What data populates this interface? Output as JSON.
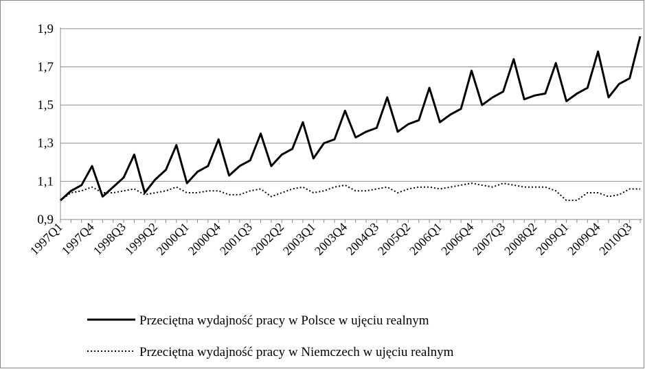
{
  "chart_data": {
    "type": "line",
    "categories": [
      "1997Q1",
      null,
      null,
      "1997Q4",
      null,
      null,
      "1998Q3",
      null,
      null,
      "1999Q2",
      null,
      null,
      "2000Q1",
      null,
      null,
      "2000Q4",
      null,
      null,
      "2001Q3",
      null,
      null,
      "2002Q2",
      null,
      null,
      "2003Q1",
      null,
      null,
      "2003Q4",
      null,
      null,
      "2004Q3",
      null,
      null,
      "2005Q2",
      null,
      null,
      "2006Q1",
      null,
      null,
      "2006Q4",
      null,
      null,
      "2007Q3",
      null,
      null,
      "2008Q2",
      null,
      null,
      "2009Q1",
      null,
      null,
      "2009Q4",
      null,
      null,
      "2010Q3",
      null
    ],
    "series": [
      {
        "name": "Przeciętna wydajność pracy w Polsce w ujęciu realnym",
        "color": "#000000",
        "style": "solid",
        "values": [
          1.0,
          1.05,
          1.08,
          1.18,
          1.02,
          1.07,
          1.12,
          1.24,
          1.04,
          1.11,
          1.16,
          1.29,
          1.09,
          1.15,
          1.18,
          1.32,
          1.13,
          1.18,
          1.21,
          1.35,
          1.18,
          1.24,
          1.27,
          1.41,
          1.22,
          1.3,
          1.32,
          1.47,
          1.33,
          1.36,
          1.38,
          1.54,
          1.36,
          1.4,
          1.42,
          1.59,
          1.41,
          1.45,
          1.48,
          1.68,
          1.5,
          1.54,
          1.57,
          1.74,
          1.53,
          1.55,
          1.56,
          1.72,
          1.52,
          1.56,
          1.59,
          1.78,
          1.54,
          1.61,
          1.64,
          1.86
        ]
      },
      {
        "name": "Przeciętna wydajność pracy w Niemczech w ujęciu realnym",
        "color": "#000000",
        "style": "dotted",
        "values": [
          1.0,
          1.04,
          1.05,
          1.07,
          1.04,
          1.04,
          1.05,
          1.06,
          1.03,
          1.04,
          1.05,
          1.07,
          1.04,
          1.04,
          1.05,
          1.05,
          1.03,
          1.03,
          1.05,
          1.06,
          1.02,
          1.04,
          1.06,
          1.07,
          1.04,
          1.05,
          1.07,
          1.08,
          1.05,
          1.05,
          1.06,
          1.07,
          1.04,
          1.06,
          1.07,
          1.07,
          1.06,
          1.07,
          1.08,
          1.09,
          1.08,
          1.07,
          1.09,
          1.08,
          1.07,
          1.07,
          1.07,
          1.05,
          1.0,
          1.0,
          1.04,
          1.04,
          1.02,
          1.03,
          1.06,
          1.06
        ]
      }
    ],
    "ylim": [
      0.9,
      2.0
    ],
    "yticks": [
      {
        "value": 0.9,
        "label": "0,9"
      },
      {
        "value": 1.1,
        "label": "1,1"
      },
      {
        "value": 1.3,
        "label": "1,3"
      },
      {
        "value": 1.5,
        "label": "1,5"
      },
      {
        "value": 1.7,
        "label": "1,7"
      },
      {
        "value": 1.9,
        "label": "1,9"
      }
    ],
    "grid": true,
    "legend": "bottom"
  }
}
